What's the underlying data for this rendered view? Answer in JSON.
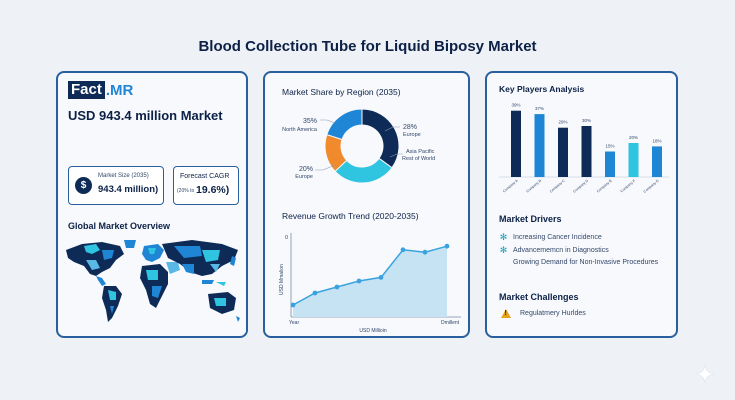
{
  "title": "Blood Collection Tube for Liquid Biposy Market",
  "brand": {
    "part1": "Fact",
    "part2": ".MR"
  },
  "headline": "USD 943.4 million Market",
  "market_size": {
    "label": "Market Size (2035)",
    "value": "943.4 million)"
  },
  "cagr": {
    "label": "Forecast CAGR",
    "prefix": "(20% to",
    "value": "19.6%)"
  },
  "overview_title": "Global Market Overview",
  "region_chart": {
    "title": "Market Share by Region (2035)",
    "labels": [
      {
        "pct": "35%",
        "name": "North America"
      },
      {
        "pct": "28%",
        "name": "Europe"
      },
      {
        "pct": "",
        "name": "Asia Pacific\nRest of World"
      },
      {
        "pct": "20%",
        "name": "Europe"
      }
    ]
  },
  "growth_chart": {
    "title": "Revenue Growth Trend (2020-2035)",
    "y_axis_label": "USD Mmalion",
    "y_tick": "0",
    "x_start": "Year",
    "x_end": "Dmillent",
    "x_label": "USD Millioin"
  },
  "players": {
    "title": "Key Players Analysis",
    "bar_labels": [
      "39%",
      "37%",
      "29%",
      "30%",
      "15%",
      "20%",
      "18%"
    ],
    "x_labels": [
      "Company A",
      "Company B",
      "Company C",
      "Company D",
      "Company E",
      "Company F",
      "Company G"
    ]
  },
  "drivers": {
    "title": "Market Drivers",
    "items": [
      "Increasing Cancer Incidence",
      "Advancememcn in Diagnostics",
      "Growing Demand for Non-Invasive Procedures"
    ]
  },
  "challenges": {
    "title": "Market Challenges",
    "items": [
      "Regulatmery Hurldes"
    ]
  },
  "colors": {
    "navy": "#0e2b57",
    "blue": "#1f86d6",
    "cyan": "#2fc4e0",
    "orange": "#f08a2c",
    "border": "#2a5f9e"
  },
  "chart_data": [
    {
      "type": "pie",
      "title": "Market Share by Region (2035)",
      "categories": [
        "North America",
        "Europe",
        "Asia Pacific / Rest of World",
        "Europe"
      ],
      "values": [
        35,
        28,
        17,
        20
      ]
    },
    {
      "type": "area",
      "title": "Revenue Growth Trend (2020-2035)",
      "ylabel": "USD Mmalion",
      "xlabel": "USD Millioin",
      "x": [
        0,
        1,
        2,
        3,
        4,
        5,
        6,
        7
      ],
      "values": [
        1,
        2,
        2.5,
        3,
        3.3,
        5.6,
        5.4,
        5.9
      ],
      "ylim": [
        0,
        7
      ]
    },
    {
      "type": "bar",
      "title": "Key Players Analysis",
      "categories": [
        "Company A",
        "Company B",
        "Company C",
        "Company D",
        "Company E",
        "Company F",
        "Company G"
      ],
      "values": [
        39,
        37,
        29,
        30,
        15,
        20,
        18
      ],
      "ylim": [
        0,
        40
      ]
    }
  ]
}
